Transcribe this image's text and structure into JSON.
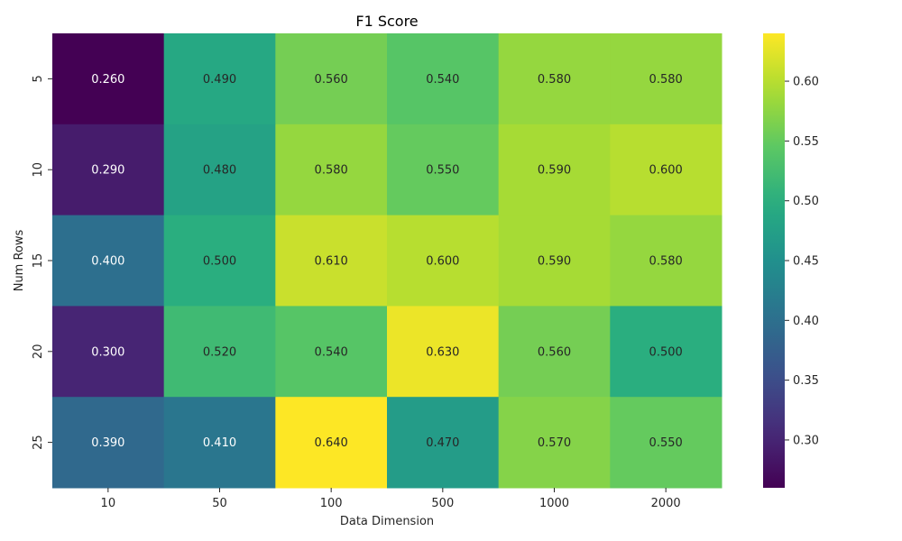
{
  "chart_data": {
    "type": "heatmap",
    "title": "F1 Score",
    "xlabel": "Data Dimension",
    "ylabel": "Num Rows",
    "x_categories": [
      "10",
      "50",
      "100",
      "500",
      "1000",
      "2000"
    ],
    "y_categories": [
      "5",
      "10",
      "15",
      "20",
      "25"
    ],
    "values": [
      [
        0.26,
        0.49,
        0.56,
        0.54,
        0.58,
        0.58
      ],
      [
        0.29,
        0.48,
        0.58,
        0.55,
        0.59,
        0.6
      ],
      [
        0.4,
        0.5,
        0.61,
        0.6,
        0.59,
        0.58
      ],
      [
        0.3,
        0.52,
        0.54,
        0.63,
        0.56,
        0.5
      ],
      [
        0.39,
        0.41,
        0.64,
        0.47,
        0.57,
        0.55
      ]
    ],
    "value_format": "3 decimals",
    "colormap": "viridis",
    "color_range": [
      0.26,
      0.64
    ],
    "colorbar_ticks": [
      0.3,
      0.35,
      0.4,
      0.45,
      0.5,
      0.55,
      0.6
    ],
    "colorbar_tick_labels": [
      "0.30",
      "0.35",
      "0.40",
      "0.45",
      "0.50",
      "0.55",
      "0.60"
    ]
  }
}
